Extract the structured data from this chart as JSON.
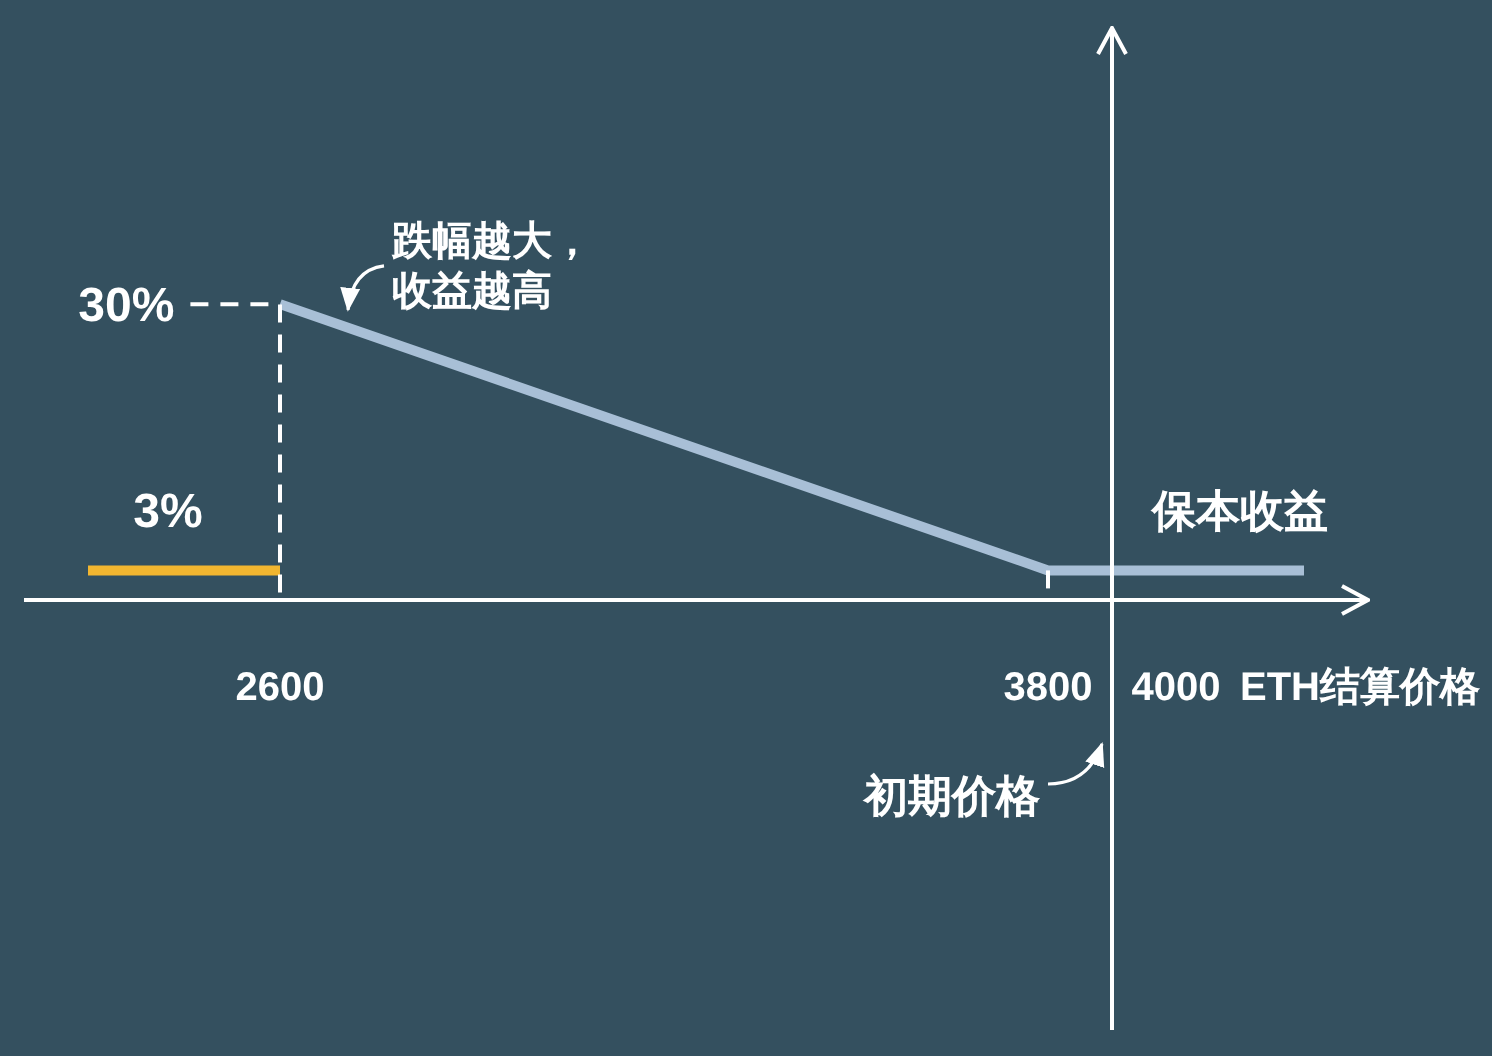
{
  "chart_data": {
    "type": "line",
    "xlabel": "ETH结算价格",
    "xlim": [
      2200,
      4300
    ],
    "xticks": [
      2600,
      3800,
      4000
    ],
    "ylim": [
      0,
      58
    ],
    "tick_labels": "x",
    "series": [
      {
        "color": "#f2b630",
        "x": [
          2300,
          2600
        ],
        "values": [
          3,
          3
        ],
        "value_labels": [
          "3%",
          null
        ]
      },
      {
        "color": "#a8bfd6",
        "x": [
          2600,
          3800,
          4200
        ],
        "values": [
          30,
          3,
          3
        ]
      },
      {
        "color": "#ffffff",
        "line_style": "dashed",
        "x": [
          2460,
          2600,
          2600
        ],
        "values": [
          30,
          30,
          0
        ],
        "value_labels": [
          "30%",
          null,
          null
        ]
      },
      {
        "color": "#ffffff",
        "line_style": "dashed",
        "x": [
          3800,
          3800
        ],
        "values": [
          3,
          0
        ]
      }
    ],
    "ref_lines": [
      {
        "axis": "x",
        "value": 3900,
        "label": "初期价格",
        "color": "#ffffff"
      }
    ],
    "annotations": [
      {
        "text": "跌幅越大，收益越高",
        "x": 2700,
        "y": 27.8
      },
      {
        "text": "保本收益",
        "x": 4100,
        "y": 3
      }
    ]
  }
}
